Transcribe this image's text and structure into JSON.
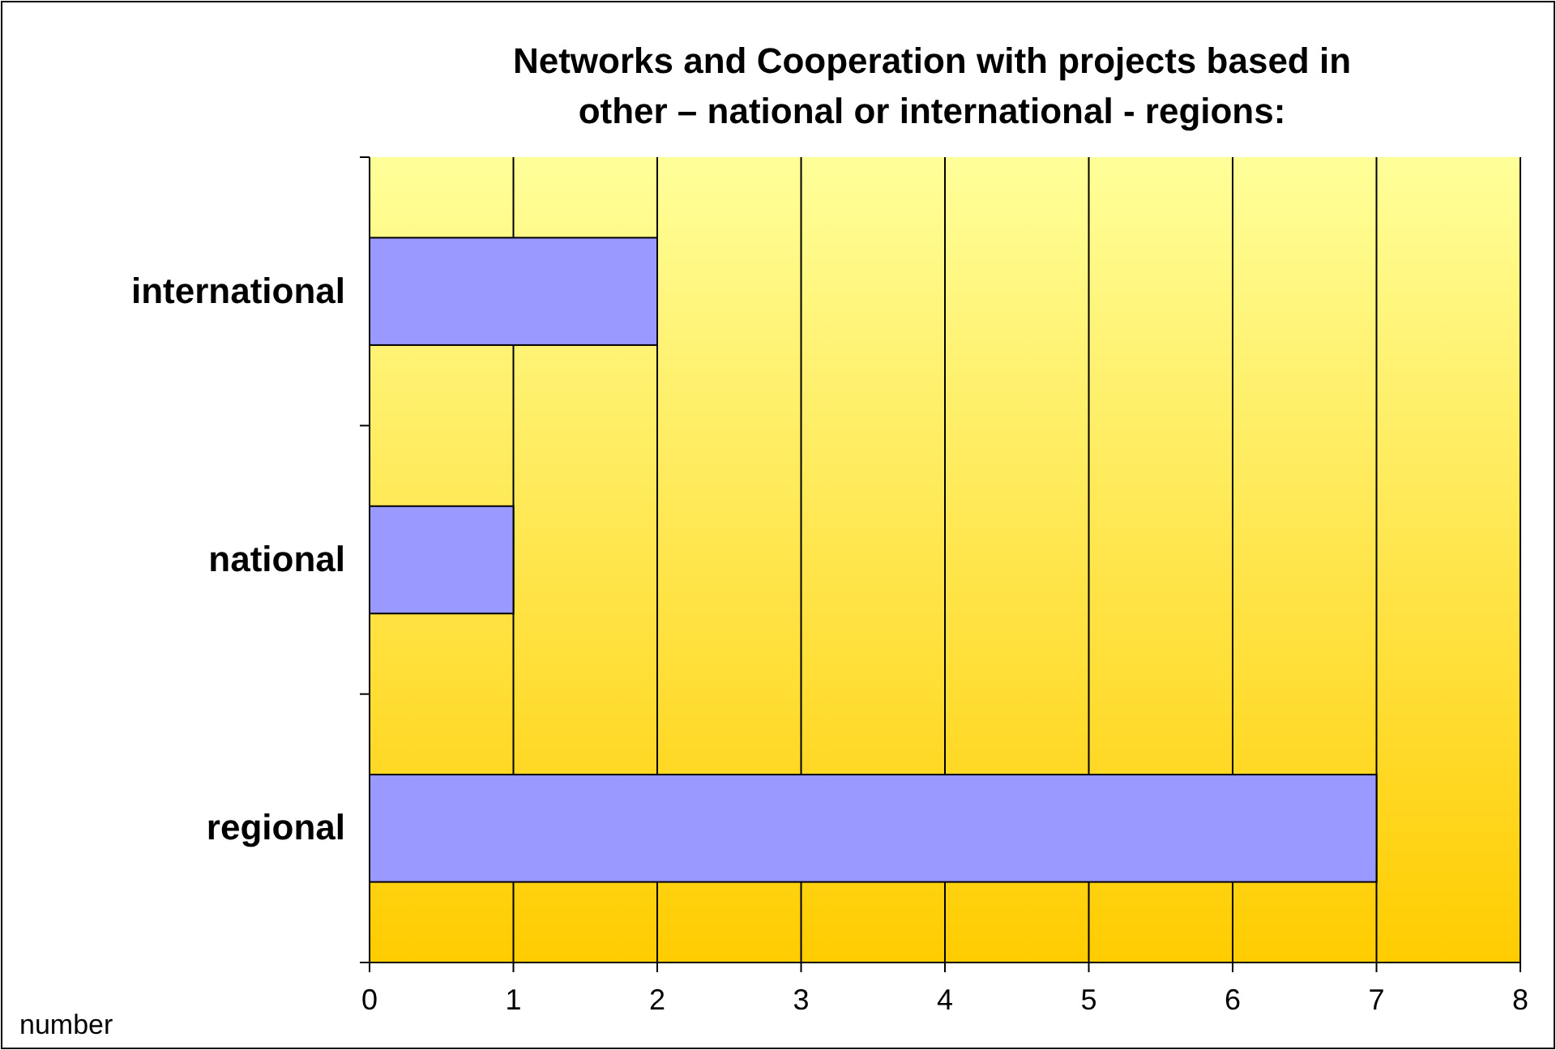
{
  "chart_data": {
    "type": "bar",
    "orientation": "horizontal",
    "title": "Networks and Cooperation with projects based in other – national or international - regions:",
    "xlabel": "number",
    "categories": [
      "international",
      "national",
      "regional"
    ],
    "series": [
      {
        "color": "#9999ff",
        "values": [
          2,
          1,
          7
        ]
      }
    ],
    "xlim": [
      0,
      8
    ],
    "xticks": [
      0,
      1,
      2,
      3,
      4,
      5,
      6,
      7,
      8
    ],
    "grid": "x"
  }
}
